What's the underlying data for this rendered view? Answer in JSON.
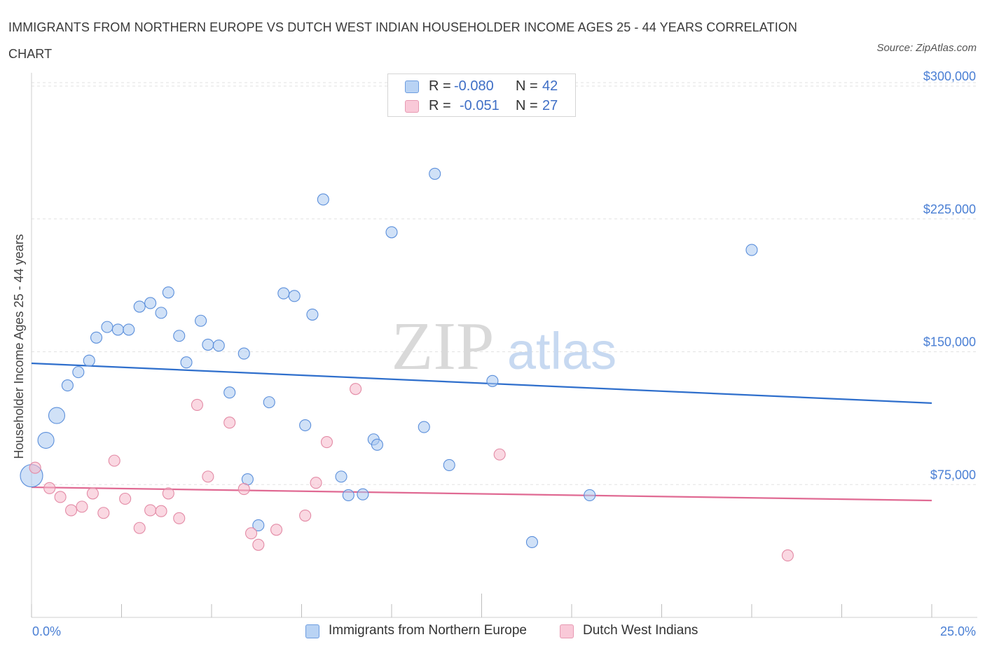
{
  "title": "IMMIGRANTS FROM NORTHERN EUROPE VS DUTCH WEST INDIAN HOUSEHOLDER INCOME AGES 25 - 44 YEARS CORRELATION CHART",
  "source": "Source: ZipAtlas.com",
  "watermark": {
    "zip": "ZIP",
    "atlas": "atlas"
  },
  "legend": {
    "r_label": "R =",
    "n_label": "N =",
    "rows": [
      {
        "r": "-0.080",
        "n": "42"
      },
      {
        "r": "-0.051",
        "n": "27"
      }
    ]
  },
  "chart_data": {
    "type": "scatter",
    "title": "IMMIGRANTS FROM NORTHERN EUROPE VS DUTCH WEST INDIAN HOUSEHOLDER INCOME AGES 25 - 44 YEARS CORRELATION CHART",
    "xlabel": "",
    "ylabel": "Householder Income Ages 25 - 44 years",
    "xlim": [
      0,
      25
    ],
    "ylim": [
      0,
      302000
    ],
    "x_tick_labels": [
      "0.0%",
      "25.0%"
    ],
    "y_ticks": [
      75000,
      150000,
      225000,
      300000
    ],
    "y_tick_labels": [
      "$75,000",
      "$150,000",
      "$225,000",
      "$300,000"
    ],
    "grid": true,
    "legend_position": "bottom",
    "colors": {
      "series1_fill": "#a9c8f0",
      "series1_stroke": "#5b8fdb",
      "series1_line": "#2f6fcc",
      "series2_fill": "#f6b8cb",
      "series2_stroke": "#e38aa5",
      "series2_line": "#e06a93"
    },
    "series": [
      {
        "name": "Immigrants from Northern Europe",
        "trend": {
          "x": [
            0,
            25
          ],
          "y": [
            143500,
            121000
          ]
        },
        "points": [
          {
            "x": 0.0,
            "y": 80000,
            "s": 3
          },
          {
            "x": 0.4,
            "y": 100000,
            "s": 2
          },
          {
            "x": 0.7,
            "y": 114000,
            "s": 2
          },
          {
            "x": 1.0,
            "y": 131000,
            "s": 1
          },
          {
            "x": 1.3,
            "y": 138500,
            "s": 1
          },
          {
            "x": 1.6,
            "y": 145000,
            "s": 1
          },
          {
            "x": 1.8,
            "y": 158000,
            "s": 1
          },
          {
            "x": 2.1,
            "y": 164000,
            "s": 1
          },
          {
            "x": 2.4,
            "y": 162500,
            "s": 1
          },
          {
            "x": 2.7,
            "y": 162500,
            "s": 1
          },
          {
            "x": 3.0,
            "y": 175500,
            "s": 1
          },
          {
            "x": 3.3,
            "y": 177500,
            "s": 1
          },
          {
            "x": 3.6,
            "y": 172000,
            "s": 1
          },
          {
            "x": 3.8,
            "y": 183500,
            "s": 1
          },
          {
            "x": 4.1,
            "y": 159000,
            "s": 1
          },
          {
            "x": 4.3,
            "y": 144000,
            "s": 1
          },
          {
            "x": 4.7,
            "y": 167500,
            "s": 1
          },
          {
            "x": 4.9,
            "y": 154000,
            "s": 1
          },
          {
            "x": 5.2,
            "y": 153500,
            "s": 1
          },
          {
            "x": 5.5,
            "y": 127000,
            "s": 1
          },
          {
            "x": 5.9,
            "y": 149000,
            "s": 1
          },
          {
            "x": 6.0,
            "y": 78000,
            "s": 1
          },
          {
            "x": 6.3,
            "y": 52000,
            "s": 1
          },
          {
            "x": 6.6,
            "y": 121500,
            "s": 1
          },
          {
            "x": 7.0,
            "y": 183000,
            "s": 1
          },
          {
            "x": 7.3,
            "y": 181500,
            "s": 1
          },
          {
            "x": 7.6,
            "y": 108500,
            "s": 1
          },
          {
            "x": 7.8,
            "y": 171000,
            "s": 1
          },
          {
            "x": 8.1,
            "y": 236000,
            "s": 1
          },
          {
            "x": 8.6,
            "y": 79500,
            "s": 1
          },
          {
            "x": 8.8,
            "y": 69000,
            "s": 1
          },
          {
            "x": 9.2,
            "y": 69500,
            "s": 1
          },
          {
            "x": 9.5,
            "y": 100500,
            "s": 1
          },
          {
            "x": 9.6,
            "y": 97500,
            "s": 1
          },
          {
            "x": 10.0,
            "y": 217500,
            "s": 1
          },
          {
            "x": 10.9,
            "y": 107500,
            "s": 1
          },
          {
            "x": 11.2,
            "y": 250500,
            "s": 1
          },
          {
            "x": 11.6,
            "y": 86000,
            "s": 1
          },
          {
            "x": 12.8,
            "y": 133500,
            "s": 1
          },
          {
            "x": 13.9,
            "y": 42500,
            "s": 1
          },
          {
            "x": 15.5,
            "y": 69000,
            "s": 1
          },
          {
            "x": 20.0,
            "y": 207500,
            "s": 1
          }
        ]
      },
      {
        "name": "Dutch West Indians",
        "trend": {
          "x": [
            0,
            25
          ],
          "y": [
            73500,
            66000
          ]
        },
        "points": [
          {
            "x": 0.1,
            "y": 84500,
            "s": 1
          },
          {
            "x": 0.5,
            "y": 73000,
            "s": 1
          },
          {
            "x": 0.8,
            "y": 68000,
            "s": 1
          },
          {
            "x": 1.1,
            "y": 60500,
            "s": 1
          },
          {
            "x": 1.4,
            "y": 62500,
            "s": 1
          },
          {
            "x": 1.7,
            "y": 70000,
            "s": 1
          },
          {
            "x": 2.0,
            "y": 59000,
            "s": 1
          },
          {
            "x": 2.3,
            "y": 88500,
            "s": 1
          },
          {
            "x": 2.6,
            "y": 67000,
            "s": 1
          },
          {
            "x": 3.0,
            "y": 50500,
            "s": 1
          },
          {
            "x": 3.3,
            "y": 60500,
            "s": 1
          },
          {
            "x": 3.6,
            "y": 60000,
            "s": 1
          },
          {
            "x": 3.8,
            "y": 70000,
            "s": 1
          },
          {
            "x": 4.1,
            "y": 56000,
            "s": 1
          },
          {
            "x": 4.6,
            "y": 120000,
            "s": 1
          },
          {
            "x": 4.9,
            "y": 79500,
            "s": 1
          },
          {
            "x": 5.5,
            "y": 110000,
            "s": 1
          },
          {
            "x": 5.9,
            "y": 72500,
            "s": 1
          },
          {
            "x": 6.1,
            "y": 47500,
            "s": 1
          },
          {
            "x": 6.3,
            "y": 41000,
            "s": 1
          },
          {
            "x": 6.8,
            "y": 49500,
            "s": 1
          },
          {
            "x": 7.6,
            "y": 57500,
            "s": 1
          },
          {
            "x": 7.9,
            "y": 76000,
            "s": 1
          },
          {
            "x": 8.2,
            "y": 99000,
            "s": 1
          },
          {
            "x": 9.0,
            "y": 129000,
            "s": 1
          },
          {
            "x": 13.0,
            "y": 92000,
            "s": 1
          },
          {
            "x": 21.0,
            "y": 35000,
            "s": 1
          }
        ]
      }
    ]
  }
}
